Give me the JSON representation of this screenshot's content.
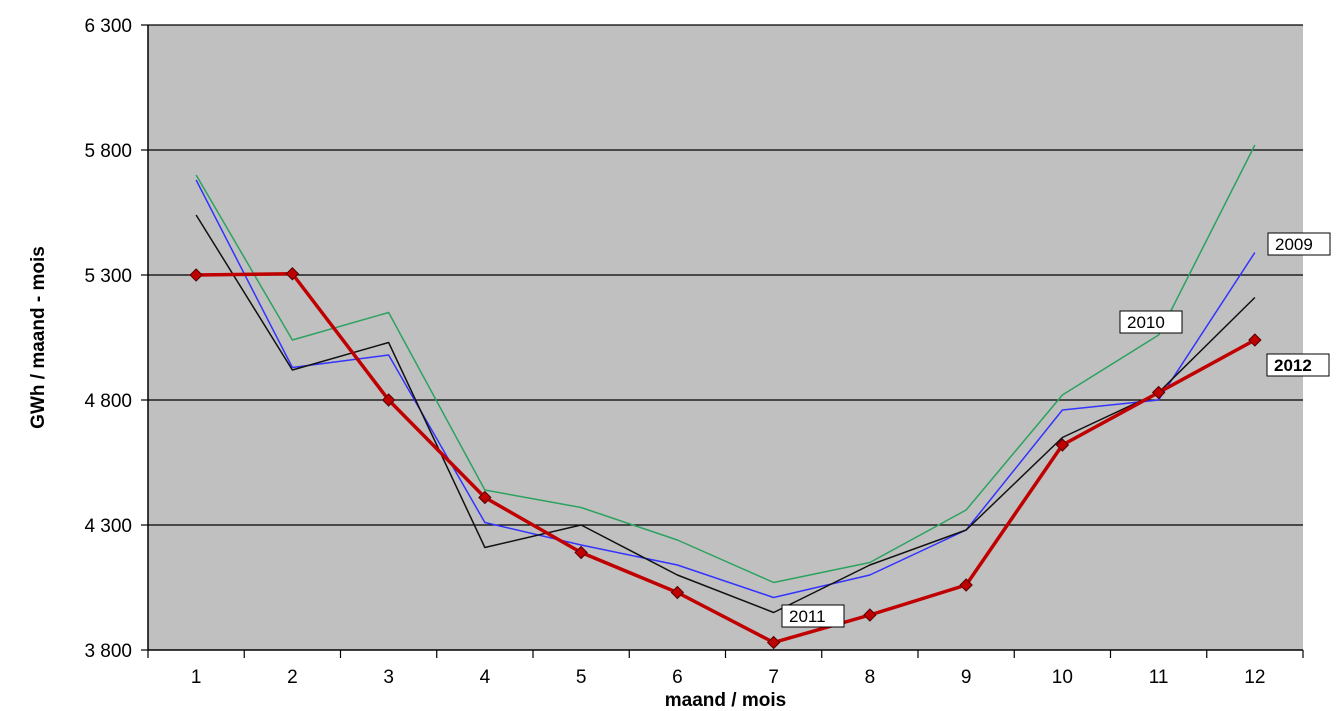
{
  "chart_data": {
    "type": "line",
    "x": [
      1,
      2,
      3,
      4,
      5,
      6,
      7,
      8,
      9,
      10,
      11,
      12
    ],
    "xlabel": "maand  /  mois",
    "ylabel": "GWh / maand - mois",
    "ylim": [
      3800,
      6300
    ],
    "yticks": [
      3800,
      4300,
      4800,
      5300,
      5800,
      6300
    ],
    "ytick_labels": [
      "3 800",
      "4 300",
      "4 800",
      "5 300",
      "5 800",
      "6 300"
    ],
    "grid": true,
    "plot_background": "#c0c0c0",
    "series": [
      {
        "name": "2009",
        "color": "#3333ff",
        "markers": false,
        "bold_label": false,
        "values": [
          5680,
          4930,
          4980,
          4310,
          4220,
          4140,
          4010,
          4100,
          4280,
          4760,
          4800,
          5390
        ]
      },
      {
        "name": "2010",
        "color": "#2ca25f",
        "markers": false,
        "bold_label": false,
        "values": [
          5700,
          5040,
          5150,
          4440,
          4370,
          4240,
          4070,
          4150,
          4360,
          4820,
          5060,
          5820
        ]
      },
      {
        "name": "2011",
        "color": "#111111",
        "markers": false,
        "bold_label": false,
        "values": [
          5540,
          4920,
          5030,
          4210,
          4300,
          4100,
          3950,
          4140,
          4280,
          4650,
          4830,
          5210
        ]
      },
      {
        "name": "2012",
        "color": "#c00000",
        "markers": true,
        "bold_label": true,
        "values": [
          5300,
          5305,
          4800,
          4410,
          4190,
          4030,
          3830,
          3940,
          4060,
          4620,
          4830,
          5040
        ]
      }
    ]
  }
}
